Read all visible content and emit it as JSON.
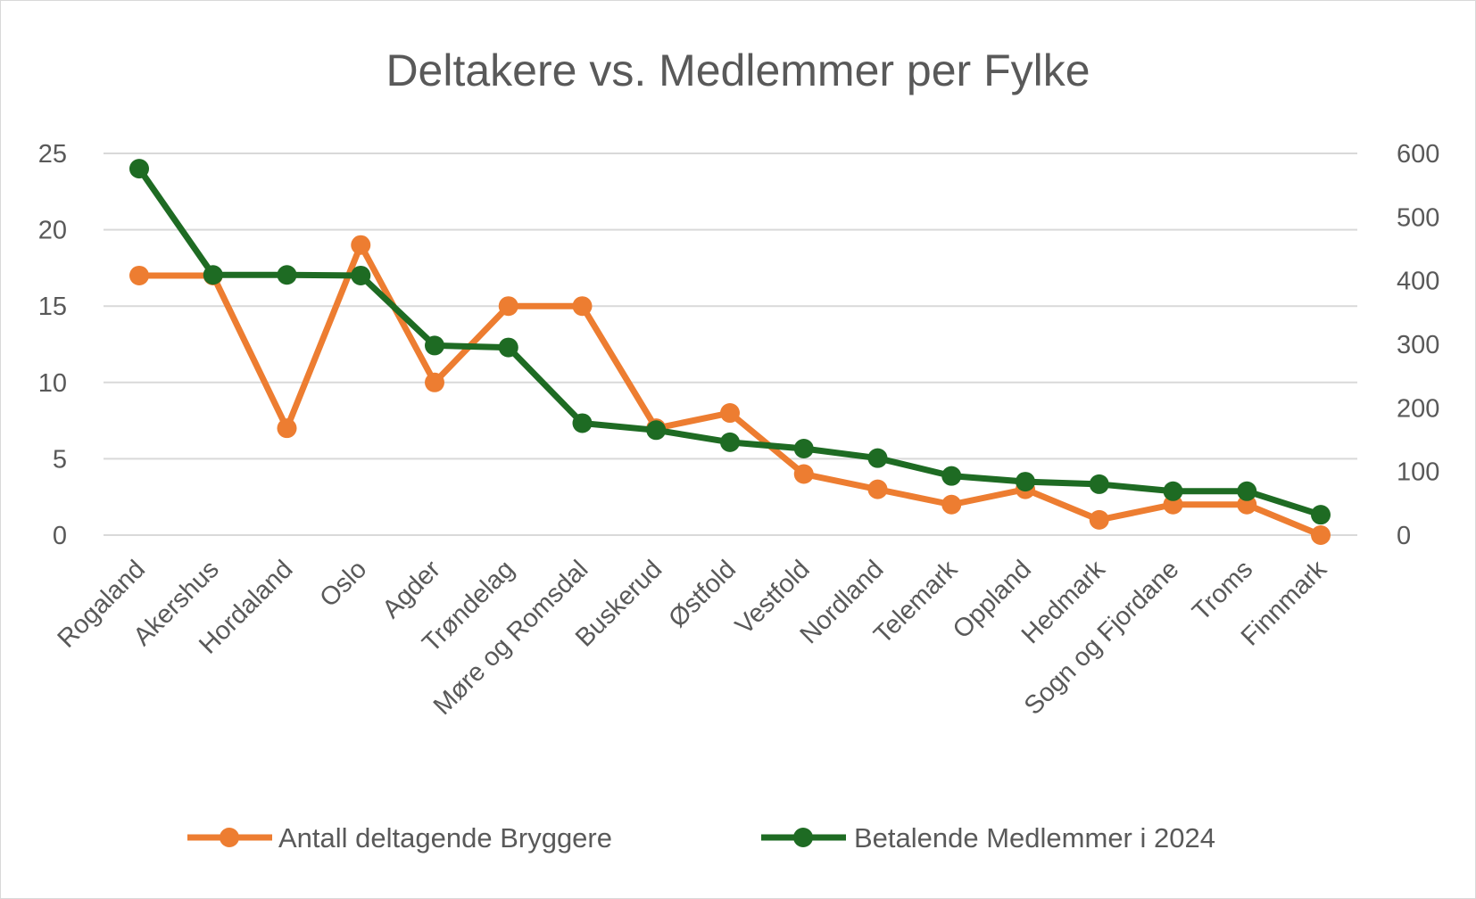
{
  "chart_data": {
    "type": "line",
    "title": "Deltakere vs. Medlemmer per Fylke",
    "categories": [
      "Rogaland",
      "Akershus",
      "Hordaland",
      "Oslo",
      "Agder",
      "Trøndelag",
      "Møre og Romsdal",
      "Buskerud",
      "Østfold",
      "Vestfold",
      "Nordland",
      "Telemark",
      "Oppland",
      "Hedmark",
      "Sogn og Fjordane",
      "Troms",
      "Finnmark"
    ],
    "series": [
      {
        "name": "Antall deltagende Bryggere",
        "axis": "left",
        "color": "#ED7D31",
        "values": [
          17,
          17,
          7,
          19,
          10,
          15,
          15,
          7,
          8,
          4,
          3,
          2,
          3,
          1,
          2,
          2,
          0
        ]
      },
      {
        "name": "Betalende Medlemmer i 2024",
        "axis": "right",
        "color": "#1E6B23",
        "values": [
          576,
          409,
          409,
          408,
          298,
          295,
          176,
          165,
          146,
          136,
          121,
          93,
          84,
          80,
          69,
          69,
          32
        ]
      }
    ],
    "y_left": {
      "range": [
        0,
        25
      ],
      "ticks": [
        "0",
        "5",
        "10",
        "15",
        "20",
        "25"
      ]
    },
    "y_right": {
      "range": [
        0,
        600
      ],
      "ticks": [
        "0",
        "100",
        "200",
        "300",
        "400",
        "500",
        "600"
      ]
    },
    "grid": true,
    "legend": "bottom"
  }
}
